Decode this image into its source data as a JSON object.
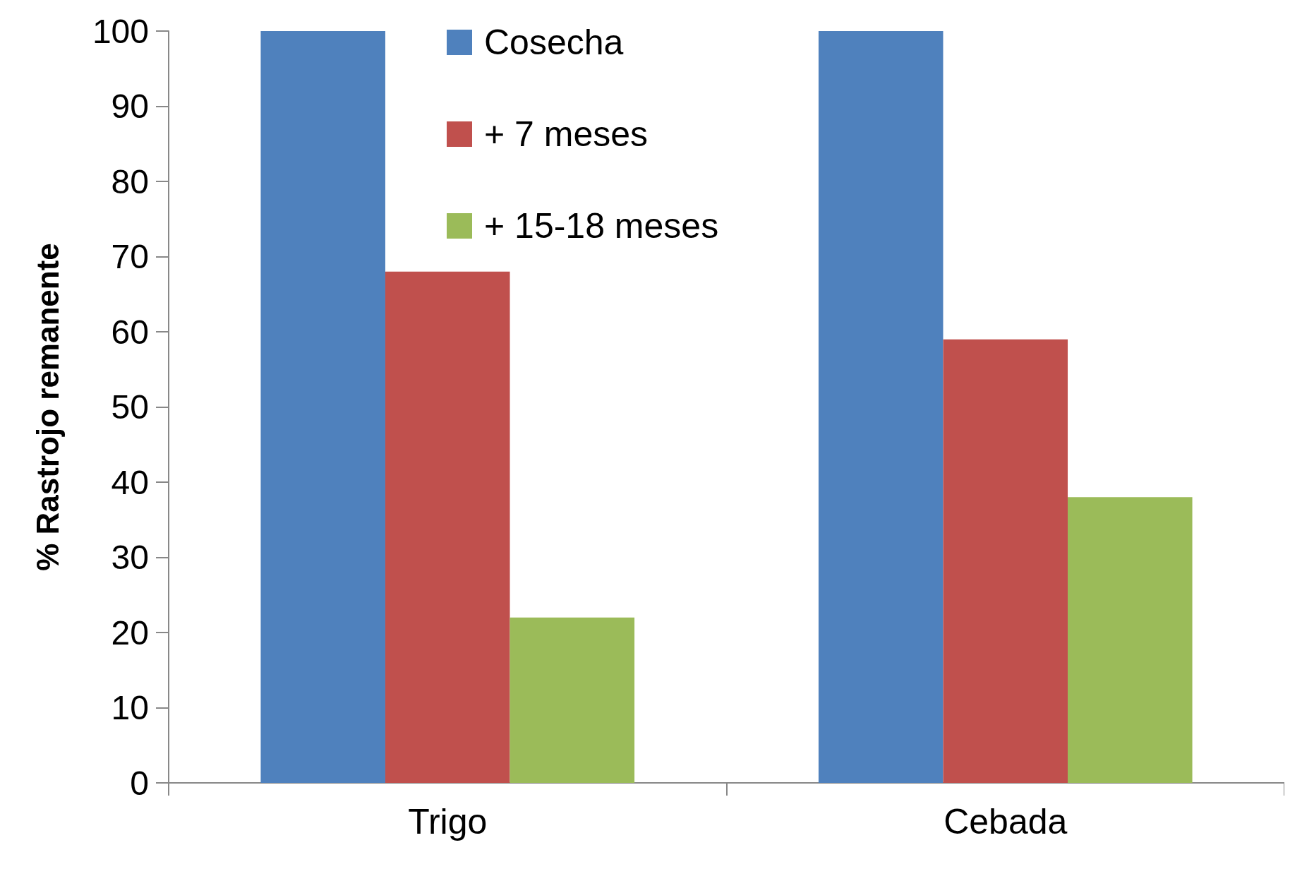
{
  "chart_data": {
    "type": "bar",
    "ylabel": "% Rastrojo remanente",
    "categories": [
      "Trigo",
      "Cebada"
    ],
    "series": [
      {
        "name": "Cosecha",
        "color": "#4f81bd",
        "values": [
          100,
          100
        ]
      },
      {
        "name": "+ 7 meses",
        "color": "#c0504d",
        "values": [
          68,
          59
        ]
      },
      {
        "name": "+ 15-18 meses",
        "color": "#9bbb59",
        "values": [
          22,
          38
        ]
      }
    ],
    "ylim": [
      0,
      100
    ],
    "yticks": [
      0,
      10,
      20,
      30,
      40,
      50,
      60,
      70,
      80,
      90,
      100
    ],
    "grid": false,
    "legend": "top"
  }
}
